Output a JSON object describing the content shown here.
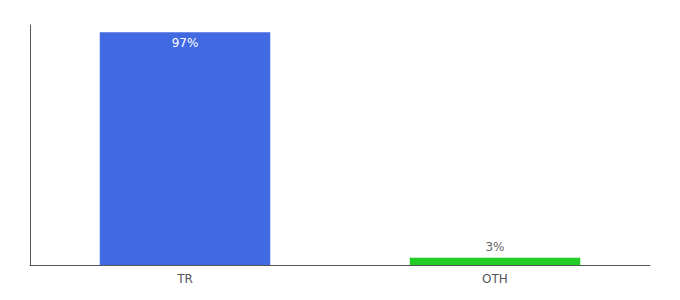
{
  "chart_data": {
    "type": "bar",
    "categories": [
      "TR",
      "OTH"
    ],
    "values": [
      97,
      3
    ],
    "value_labels": [
      "97%",
      "3%"
    ],
    "colors": [
      "#4169e1",
      "#22cc22"
    ],
    "ylim": [
      0,
      100
    ],
    "data_labels": true,
    "tick_labels": "x",
    "grid": false
  }
}
